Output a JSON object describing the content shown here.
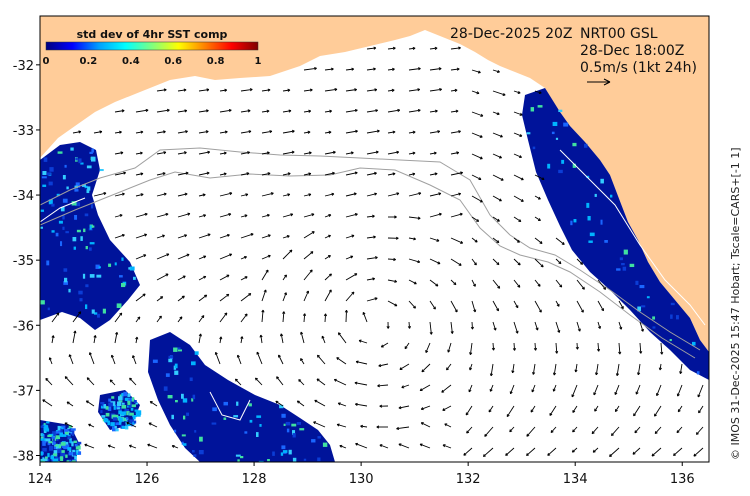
{
  "header": {
    "date": "28-Dec-2025 20Z",
    "product": "NRT00 GSL",
    "sst_time": "28-Dec 18:00Z",
    "scale_text": "0.5m/s (1kt 24h)"
  },
  "colorbar": {
    "title": "std dev of 4hr SST comp",
    "ticks": [
      "0",
      "0.2",
      "0.4",
      "0.6",
      "0.8",
      "1"
    ],
    "stops": [
      "#00007f",
      "#0000ff",
      "#00a0ff",
      "#00ffff",
      "#7fff7f",
      "#ffff00",
      "#ff8000",
      "#ff0000",
      "#7f0000"
    ]
  },
  "axes": {
    "x_ticks": [
      "124",
      "126",
      "128",
      "130",
      "132",
      "134",
      "136"
    ],
    "y_ticks": [
      "-32",
      "-33",
      "-34",
      "-35",
      "-36",
      "-37",
      "-38"
    ],
    "lon_range": [
      124,
      136.5
    ],
    "lat_range": [
      -38.1,
      -31.25
    ]
  },
  "credit": "© IMOS 31-Dec-2025 15:47 Hobart; Tscale=CARS+[-1 1]",
  "colors": {
    "land": "#ffcc99",
    "sst_dark": "#00139a",
    "sst_mid": "#0b3dd6",
    "frame": "#000000",
    "isobath": "#a0a0a0"
  }
}
